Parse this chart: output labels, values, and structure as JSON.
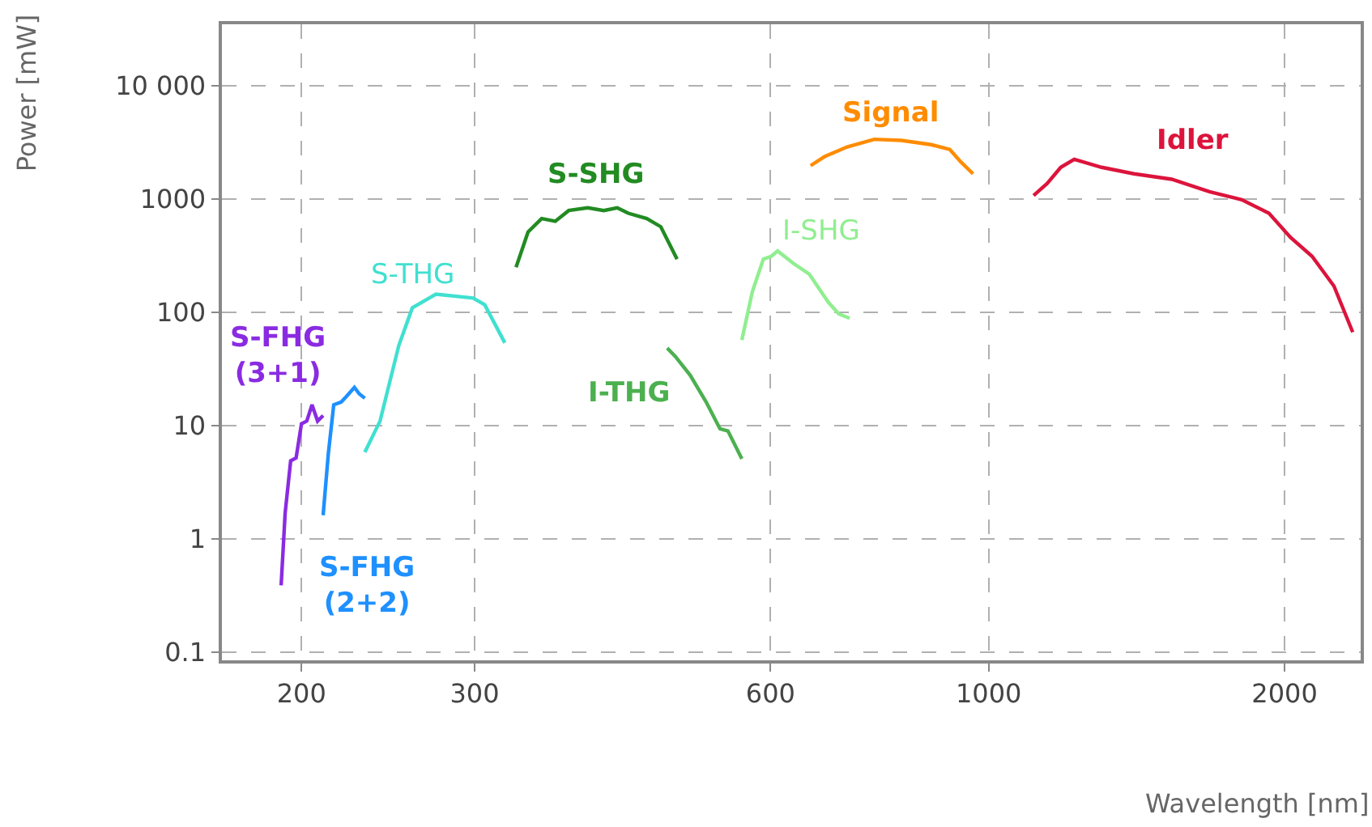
{
  "chart_data": {
    "type": "line",
    "xlabel": "Wavelength [nm]",
    "ylabel": "Power [mW]",
    "log": "xy",
    "grid": true,
    "legend": false,
    "marker": "none",
    "line_style": "solid",
    "xlim": [
      166,
      2390
    ],
    "ylim": [
      0.085,
      35000
    ],
    "xticks": [
      200,
      300,
      600,
      1000,
      2000
    ],
    "yticks": [
      0.1,
      1,
      10,
      100,
      1000,
      {
        "value": 10000,
        "label": "10 000"
      }
    ],
    "series": [
      {
        "name": "S-FHG (3+1)",
        "color": "#8a2be2",
        "x": [
          190.7,
          192.5,
          195,
          197.5,
          200,
          202.5,
          205,
          207.7,
          210.4
        ],
        "values": [
          0.39,
          1.7,
          4.9,
          5.2,
          10.4,
          11,
          15.3,
          11,
          12.3
        ]
      },
      {
        "name": "S-FHG (2+2)",
        "color": "#1e90ff",
        "x": [
          210.4,
          213,
          215.7,
          219.5,
          222,
          226.4,
          229,
          232
        ],
        "values": [
          1.62,
          5.7,
          15.3,
          16.2,
          18,
          21.8,
          19.1,
          17.5
        ]
      },
      {
        "name": "S-THG",
        "color": "#40e0d0",
        "x": [
          232,
          240.4,
          251.2,
          259.3,
          274,
          299,
          307.2,
          322
        ],
        "values": [
          5.85,
          11,
          51,
          110,
          145,
          134,
          117,
          54
        ]
      },
      {
        "name": "S-SHG",
        "color": "#228b22",
        "x": [
          330.6,
          340,
          351,
          362.4,
          374,
          391,
          406,
          419,
          430,
          449,
          464,
          482
        ],
        "values": [
          251,
          513,
          674,
          638,
          794,
          840,
          794,
          840,
          751,
          674,
          571,
          296
        ]
      },
      {
        "name": "I-THG",
        "color": "#4cb050",
        "x": [
          471,
          480,
          497,
          516,
          533,
          543,
          561
        ],
        "values": [
          48.5,
          41,
          28,
          16.2,
          9.4,
          9,
          5.1
        ]
      },
      {
        "name": "I-SHG",
        "color": "#90ee90",
        "x": [
          561,
          575,
          590,
          601,
          610,
          633,
          657,
          687,
          704,
          722
        ],
        "values": [
          57,
          153,
          296,
          313,
          349,
          271,
          218,
          123,
          97,
          89
        ]
      },
      {
        "name": "Signal",
        "color": "#ff8c00",
        "x": [
          659,
          681,
          718,
          765,
          815,
          874,
          913,
          937,
          964
        ],
        "values": [
          1976,
          2376,
          2893,
          3379,
          3300,
          3030,
          2747,
          2131,
          1677
        ]
      },
      {
        "name": "Idler",
        "color": "#dc143c",
        "x": [
          1111,
          1147,
          1184,
          1222,
          1303,
          1405,
          1535,
          1677,
          1809,
          1928,
          2028,
          2133,
          2245,
          2346
        ],
        "values": [
          1079,
          1376,
          1911,
          2253,
          1911,
          1677,
          1500,
          1167,
          990,
          751,
          459,
          313,
          171,
          67
        ]
      }
    ]
  }
}
